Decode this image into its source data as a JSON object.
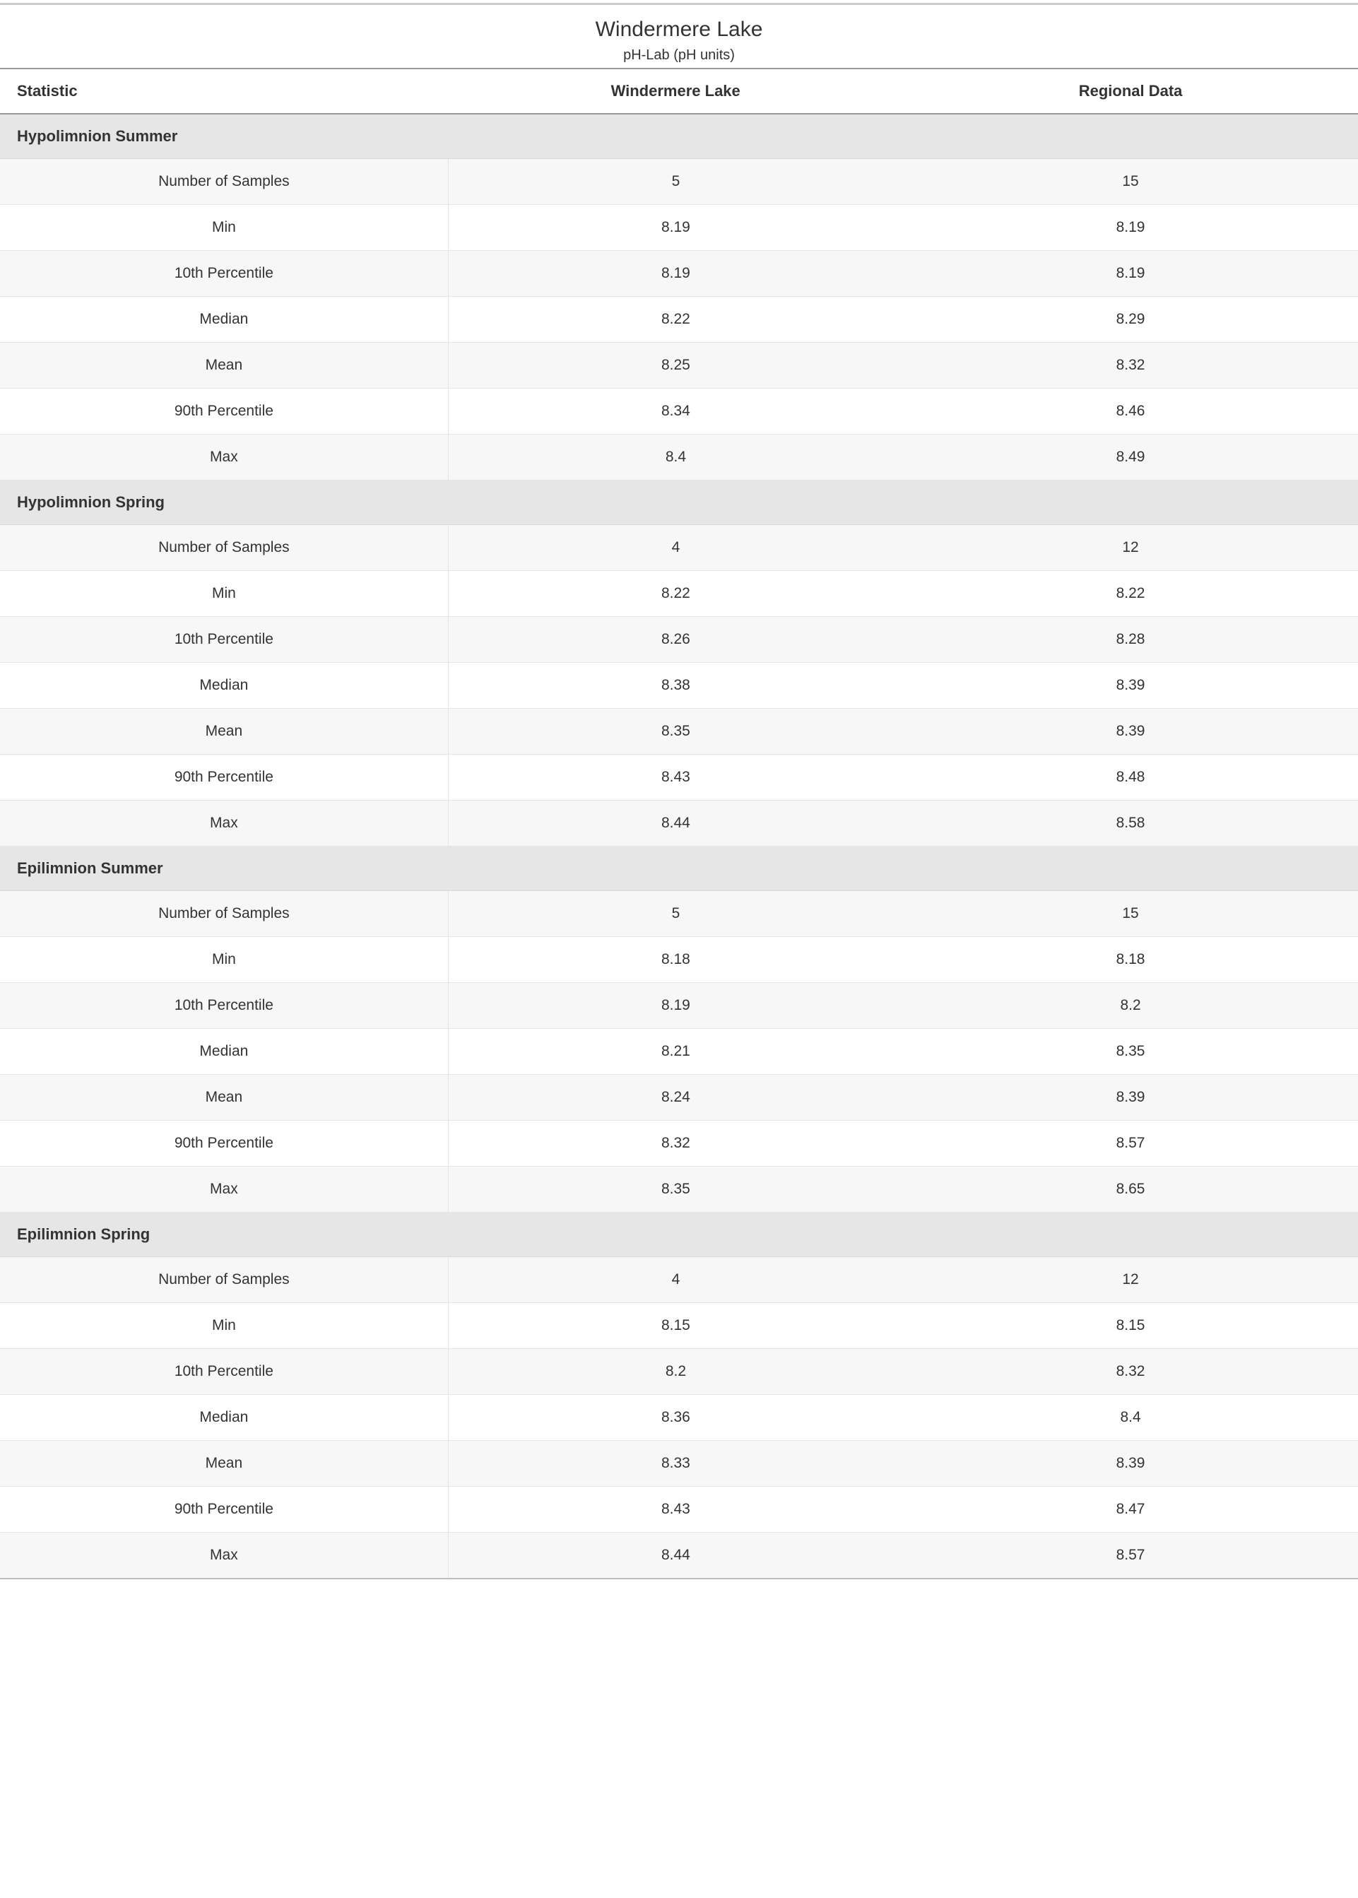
{
  "title": "Windermere Lake",
  "subtitle": "pH-Lab (pH units)",
  "columns": {
    "stat": "Statistic",
    "local": "Windermere Lake",
    "regional": "Regional Data"
  },
  "statLabels": [
    "Number of Samples",
    "Min",
    "10th Percentile",
    "Median",
    "Mean",
    "90th Percentile",
    "Max"
  ],
  "sections": [
    {
      "name": "Hypolimnion Summer",
      "rows": [
        {
          "local": "5",
          "regional": "15"
        },
        {
          "local": "8.19",
          "regional": "8.19"
        },
        {
          "local": "8.19",
          "regional": "8.19"
        },
        {
          "local": "8.22",
          "regional": "8.29"
        },
        {
          "local": "8.25",
          "regional": "8.32"
        },
        {
          "local": "8.34",
          "regional": "8.46"
        },
        {
          "local": "8.4",
          "regional": "8.49"
        }
      ]
    },
    {
      "name": "Hypolimnion Spring",
      "rows": [
        {
          "local": "4",
          "regional": "12"
        },
        {
          "local": "8.22",
          "regional": "8.22"
        },
        {
          "local": "8.26",
          "regional": "8.28"
        },
        {
          "local": "8.38",
          "regional": "8.39"
        },
        {
          "local": "8.35",
          "regional": "8.39"
        },
        {
          "local": "8.43",
          "regional": "8.48"
        },
        {
          "local": "8.44",
          "regional": "8.58"
        }
      ]
    },
    {
      "name": "Epilimnion Summer",
      "rows": [
        {
          "local": "5",
          "regional": "15"
        },
        {
          "local": "8.18",
          "regional": "8.18"
        },
        {
          "local": "8.19",
          "regional": "8.2"
        },
        {
          "local": "8.21",
          "regional": "8.35"
        },
        {
          "local": "8.24",
          "regional": "8.39"
        },
        {
          "local": "8.32",
          "regional": "8.57"
        },
        {
          "local": "8.35",
          "regional": "8.65"
        }
      ]
    },
    {
      "name": "Epilimnion Spring",
      "rows": [
        {
          "local": "4",
          "regional": "12"
        },
        {
          "local": "8.15",
          "regional": "8.15"
        },
        {
          "local": "8.2",
          "regional": "8.32"
        },
        {
          "local": "8.36",
          "regional": "8.4"
        },
        {
          "local": "8.33",
          "regional": "8.39"
        },
        {
          "local": "8.43",
          "regional": "8.47"
        },
        {
          "local": "8.44",
          "regional": "8.57"
        }
      ]
    }
  ],
  "styling": {
    "font_family": "Segoe UI",
    "title_fontsize": 30,
    "subtitle_fontsize": 20,
    "header_fontsize": 22,
    "cell_fontsize": 21,
    "text_color": "#333333",
    "section_header_bg": "#e6e6e6",
    "alt_row_bg": "#f7f7f7",
    "border_color_light": "#e5e5e5",
    "border_color_medium": "#bfbfbf",
    "border_color_header": "#999999",
    "top_bar_color": "#cccccc",
    "background_color": "#ffffff"
  }
}
